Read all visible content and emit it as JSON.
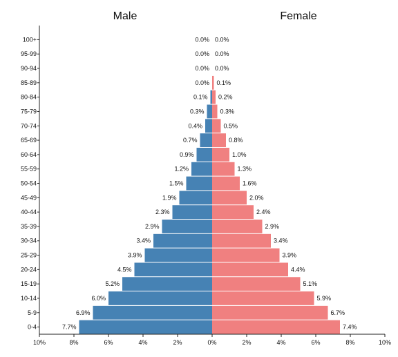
{
  "chart_data": {
    "type": "bar",
    "orientation": "horizontal",
    "layout": "population-pyramid",
    "categories": [
      "0-4",
      "5-9",
      "10-14",
      "15-19",
      "20-24",
      "25-29",
      "30-34",
      "35-39",
      "40-44",
      "45-49",
      "50-54",
      "55-59",
      "60-64",
      "65-69",
      "70-74",
      "75-79",
      "80-84",
      "85-89",
      "90-94",
      "95-99",
      "100+"
    ],
    "series": [
      {
        "name": "Male",
        "color": "#4682b4",
        "values": [
          7.7,
          6.9,
          6.0,
          5.2,
          4.5,
          3.9,
          3.4,
          2.9,
          2.3,
          1.9,
          1.5,
          1.2,
          0.9,
          0.7,
          0.4,
          0.3,
          0.1,
          0.0,
          0.0,
          0.0,
          0.0
        ],
        "labels": [
          "7.7%",
          "6.9%",
          "6.0%",
          "5.2%",
          "4.5%",
          "3.9%",
          "3.4%",
          "2.9%",
          "2.3%",
          "1.9%",
          "1.5%",
          "1.2%",
          "0.9%",
          "0.7%",
          "0.4%",
          "0.3%",
          "0.1%",
          "0.0%",
          "0.0%",
          "0.0%",
          "0.0%"
        ]
      },
      {
        "name": "Female",
        "color": "#f08080",
        "values": [
          7.4,
          6.7,
          5.9,
          5.1,
          4.4,
          3.9,
          3.4,
          2.9,
          2.4,
          2.0,
          1.6,
          1.3,
          1.0,
          0.8,
          0.5,
          0.3,
          0.2,
          0.1,
          0.0,
          0.0,
          0.0
        ],
        "labels": [
          "7.4%",
          "6.7%",
          "5.9%",
          "5.1%",
          "4.4%",
          "3.9%",
          "3.4%",
          "2.9%",
          "2.4%",
          "2.0%",
          "1.6%",
          "1.3%",
          "1.0%",
          "0.8%",
          "0.5%",
          "0.3%",
          "0.2%",
          "0.1%",
          "0.0%",
          "0.0%",
          "0.0%"
        ]
      }
    ],
    "xlim": [
      -10,
      10
    ],
    "x_ticks": [
      -10,
      -8,
      -6,
      -4,
      -2,
      0,
      2,
      4,
      6,
      8,
      10
    ],
    "x_tick_labels": [
      "10%",
      "8%",
      "6%",
      "4%",
      "2%",
      "0%",
      "2%",
      "4%",
      "6%",
      "8%",
      "10%"
    ],
    "title": "",
    "xlabel": "",
    "ylabel": "",
    "grid": false,
    "legend": "none"
  }
}
